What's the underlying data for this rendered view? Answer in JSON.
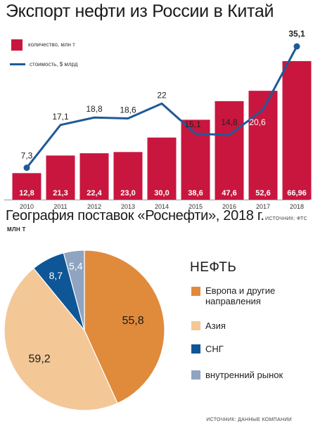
{
  "bar_chart": {
    "title": "Экспорт нефти из России в Китай",
    "legend_bar": "количество, млн т",
    "legend_line": "стоимость, $ млрд",
    "source": "ИСТОЧНИК: ФТС"
  },
  "pie_chart": {
    "title": "География поставок «Роснефти», 2018 г.",
    "unit": "МЛН Т",
    "legend_title": "НЕФТЬ",
    "source": "ИСТОЧНИК: ДАННЫЕ КОМПАНИИ"
  },
  "colors": {
    "bar": "#c8163f",
    "line": "#1f5a96",
    "europe": "#e08a3c",
    "asia": "#f3c796",
    "cis": "#0e5696",
    "domestic": "#8fa4c0"
  },
  "chart_data": [
    {
      "type": "bar",
      "title": "Экспорт нефти из России в Китай",
      "categories": [
        "2010",
        "2011",
        "2012",
        "2013",
        "2014",
        "2015",
        "2016",
        "2017",
        "2018"
      ],
      "series": [
        {
          "name": "количество, млн т",
          "type": "bar",
          "values": [
            12.8,
            21.3,
            22.4,
            23.0,
            30.0,
            38.6,
            47.6,
            52.6,
            66.96
          ],
          "labels": [
            "12,8",
            "21,3",
            "22,4",
            "23,0",
            "30,0",
            "38,6",
            "47,6",
            "52,6",
            "66,96"
          ]
        },
        {
          "name": "стоимость, $ млрд",
          "type": "line",
          "values": [
            7.3,
            17.1,
            18.8,
            18.6,
            22,
            15.1,
            14.8,
            20.6,
            35.1
          ],
          "labels": [
            "7,3",
            "17,1",
            "18,8",
            "18,6",
            "22",
            "15,1",
            "14,8",
            "20,6",
            "35,1"
          ]
        }
      ],
      "ylim_bar": [
        0,
        70
      ],
      "ylim_line": [
        0,
        38
      ],
      "legend": "top-left",
      "grid": false
    },
    {
      "type": "pie",
      "title": "География поставок «Роснефти», 2018 г.",
      "unit": "МЛН Т",
      "slices": [
        {
          "name": "Европа и другие направления",
          "label_line1": "Европа и другие",
          "label_line2": "направления",
          "value": 55.8,
          "value_label": "55,8"
        },
        {
          "name": "Азия",
          "label_line1": "Азия",
          "label_line2": "",
          "value": 59.2,
          "value_label": "59,2"
        },
        {
          "name": "СНГ",
          "label_line1": "СНГ",
          "label_line2": "",
          "value": 8.7,
          "value_label": "8,7"
        },
        {
          "name": "внутренний рынок",
          "label_line1": "внутренний рынок",
          "label_line2": "",
          "value": 5.4,
          "value_label": "5,4"
        }
      ]
    }
  ]
}
